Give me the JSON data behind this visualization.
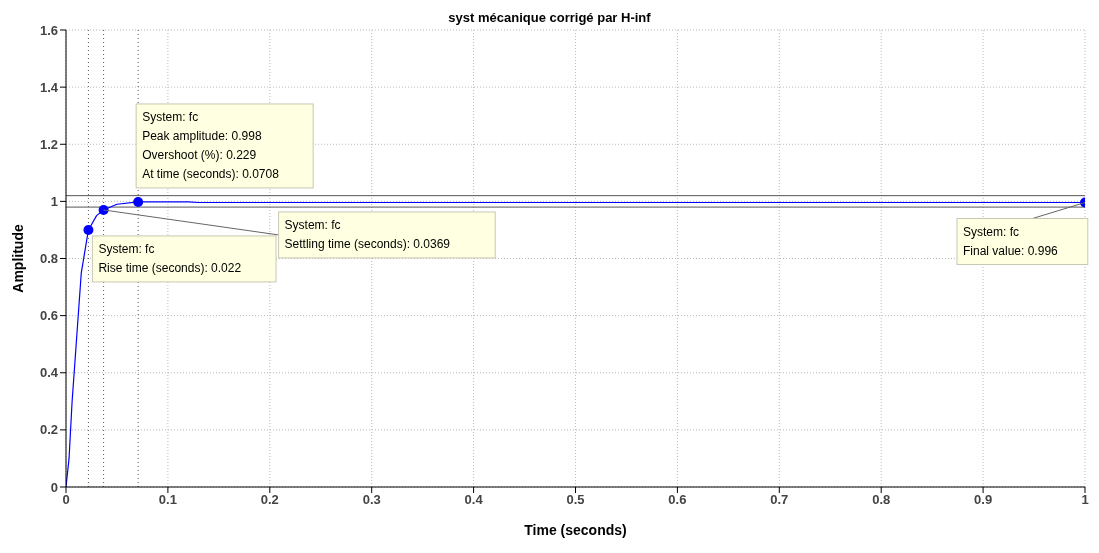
{
  "chart_data": {
    "type": "line",
    "title": "syst mécanique corrigé par H-inf",
    "xlabel": "Time (seconds)",
    "ylabel": "Amplitude",
    "series": [
      {
        "color": "#0000ff",
        "x": [
          0,
          0.003,
          0.006,
          0.01,
          0.015,
          0.022,
          0.03,
          0.0369,
          0.05,
          0.0708,
          0.12,
          0.13,
          1
        ],
        "values": [
          0,
          0.1,
          0.3,
          0.5,
          0.75,
          0.9,
          0.95,
          0.97,
          0.99,
          0.998,
          0.998,
          0.996,
          0.996
        ]
      },
      {
        "type": "scatter",
        "marker": "circle",
        "color": "#0000ff",
        "x": [
          0.022,
          0.0369,
          0.0708,
          1
        ],
        "values": [
          0.9,
          0.97,
          0.998,
          0.996
        ]
      }
    ],
    "xlim": [
      0,
      1
    ],
    "xticks": [
      0,
      0.1,
      0.2,
      0.3,
      0.4,
      0.5,
      0.6,
      0.7,
      0.8,
      0.9,
      1
    ],
    "ylim": [
      0,
      1.6
    ],
    "yticks": [
      0,
      0.2,
      0.4,
      0.6,
      0.8,
      1,
      1.2,
      1.4,
      1.6
    ],
    "grid": true,
    "ref_lines": [
      {
        "axis": "y",
        "value": 0.98,
        "color": "#555555"
      },
      {
        "axis": "y",
        "value": 1.02,
        "color": "#555555"
      },
      {
        "axis": "x",
        "value": 0.022,
        "color": "#555555",
        "line_style": "dotted"
      },
      {
        "axis": "x",
        "value": 0.0369,
        "color": "#555555",
        "line_style": "dotted"
      },
      {
        "axis": "x",
        "value": 0.0708,
        "color": "#555555",
        "line_style": "dotted"
      }
    ],
    "annotations": [
      {
        "text": "System: fc\nPeak amplitude: 0.998\nOvershoot (%): 0.229\nAt time (seconds): 0.0708",
        "x": 0.0708,
        "y": 0.998
      },
      {
        "text": "System: fc\nSettling time (seconds): 0.0369",
        "x": 0.0369,
        "y": 0.97
      },
      {
        "text": "System: fc\nRise time (seconds): 0.022",
        "x": 0.022,
        "y": 0.9
      },
      {
        "text": "System: fc\nFinal value: 0.996",
        "x": 1,
        "y": 0.996
      }
    ]
  }
}
